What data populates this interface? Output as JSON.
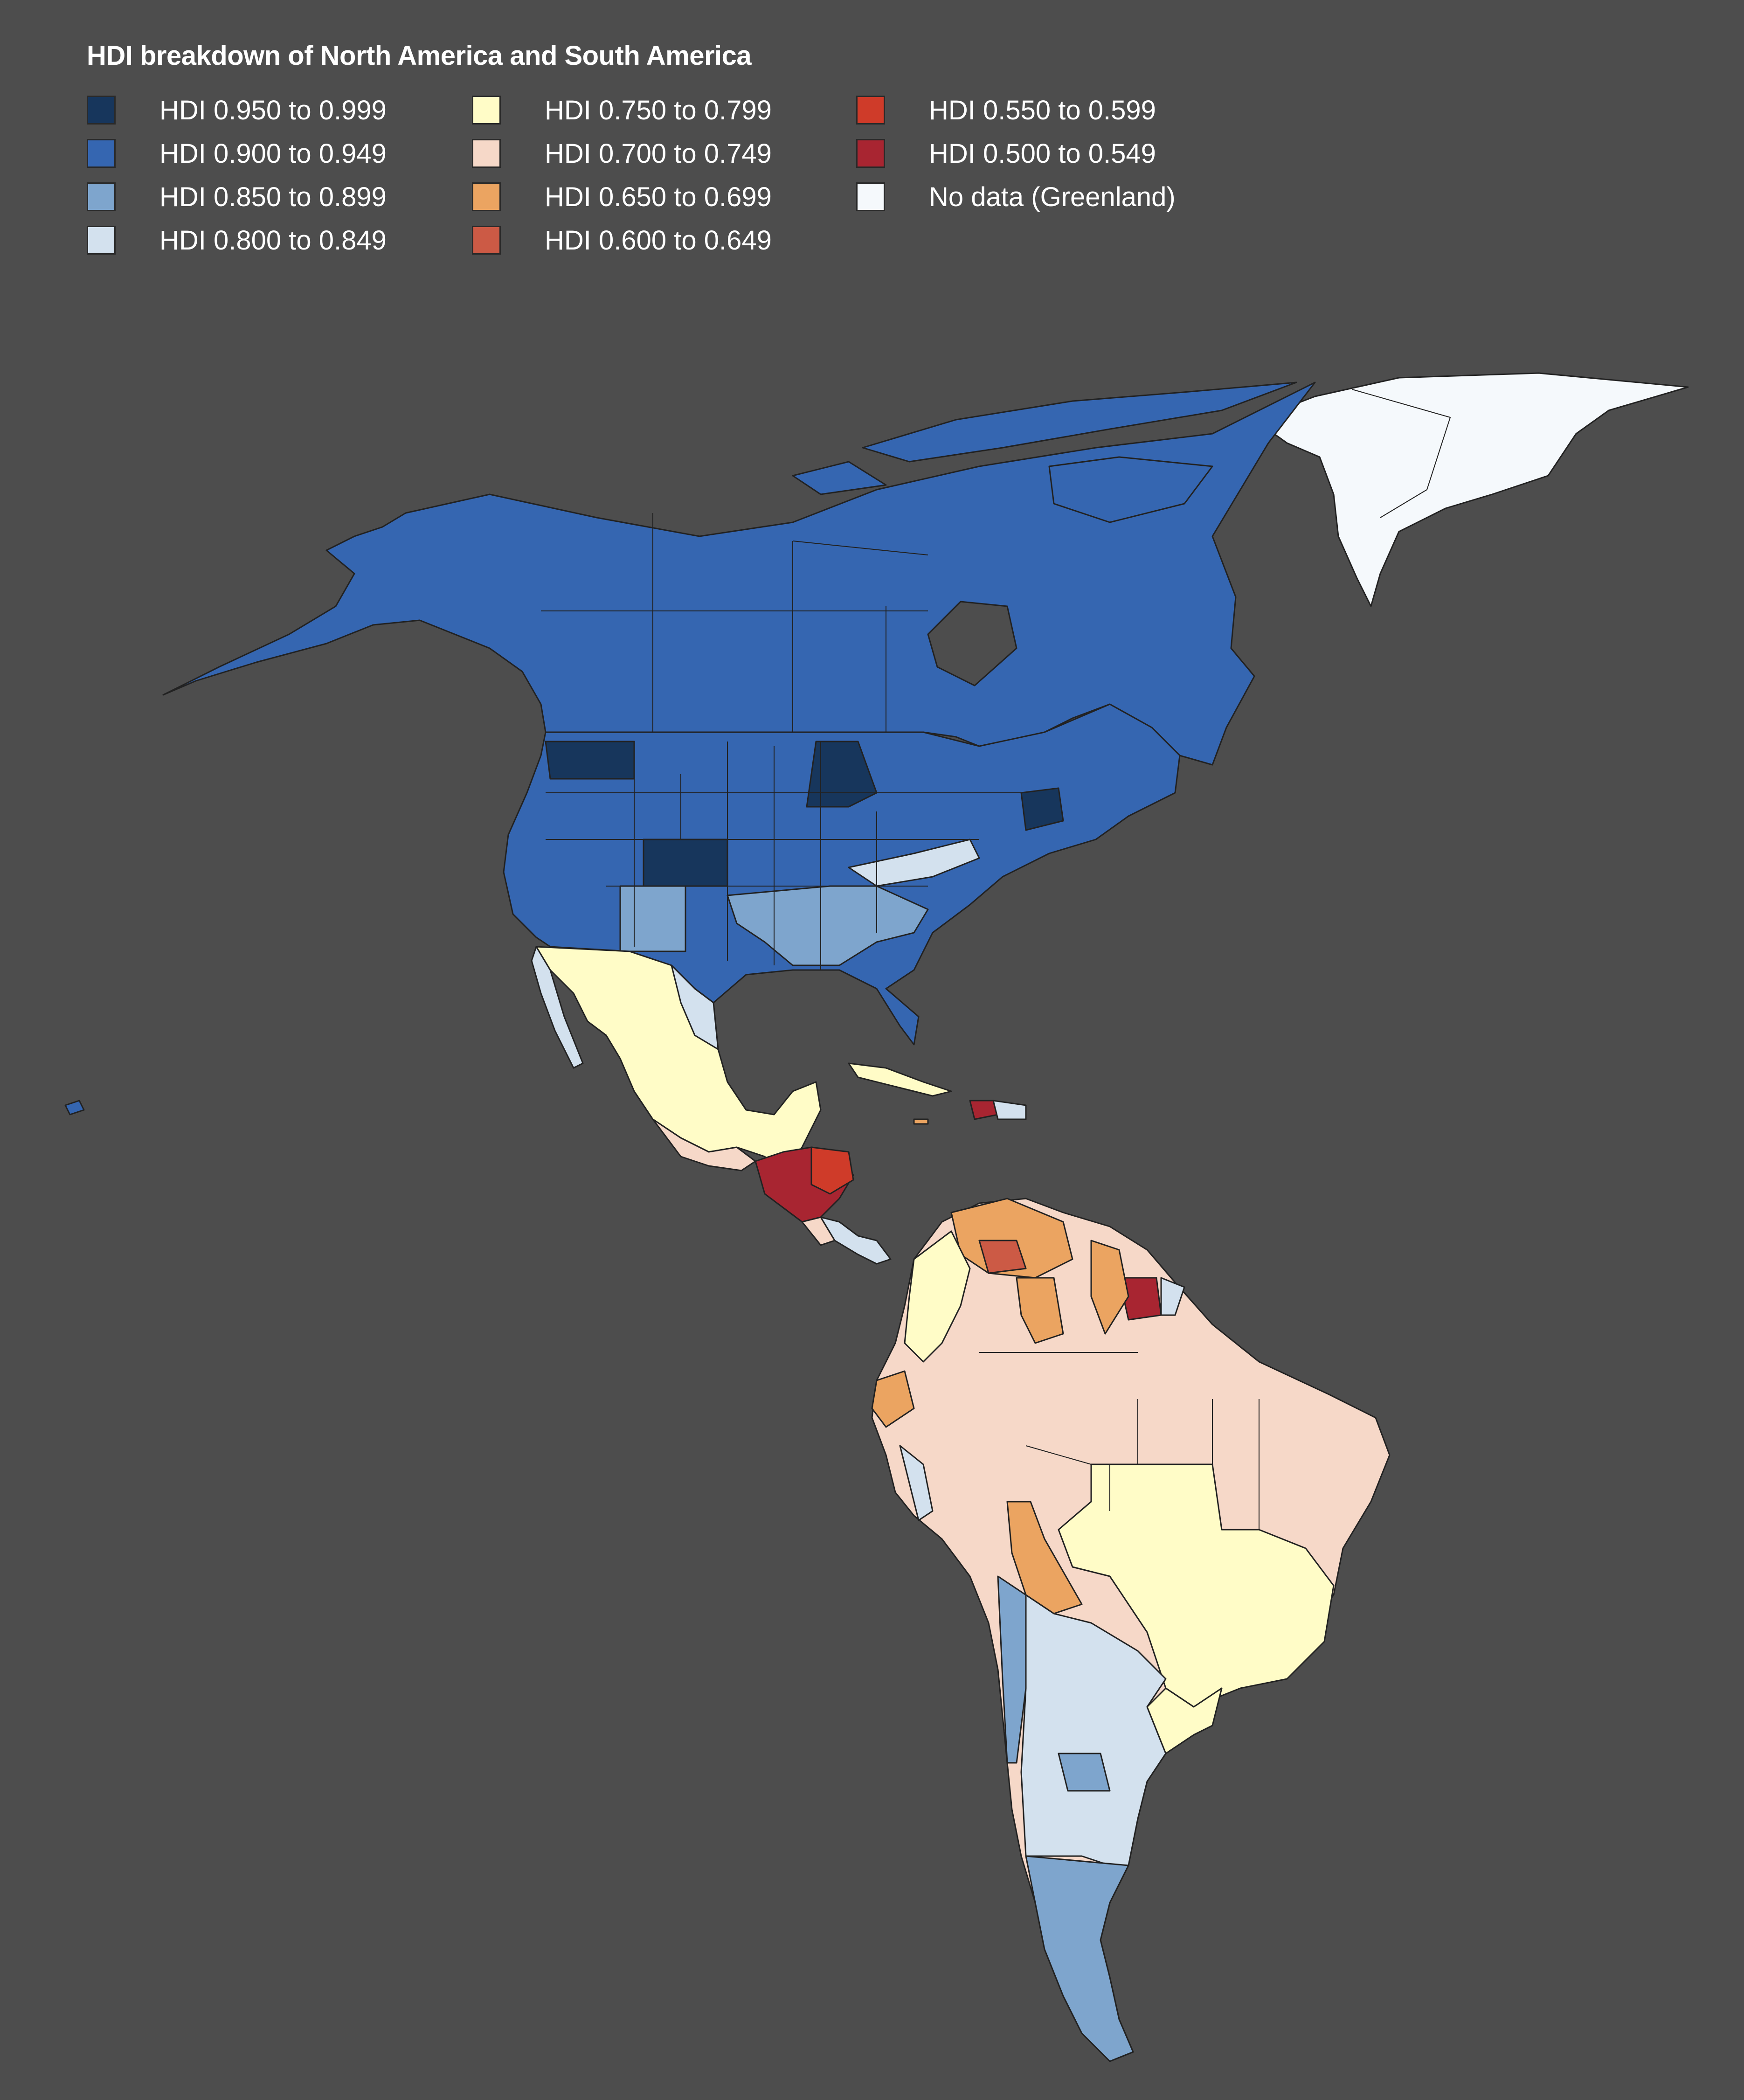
{
  "title": "HDI breakdown of North America and South America",
  "legend": [
    {
      "label": "HDI 0.950 to 0.999",
      "color": "#17365c"
    },
    {
      "label": "HDI 0.900 to 0.949",
      "color": "#3566b1"
    },
    {
      "label": "HDI 0.850 to 0.899",
      "color": "#7ea5cd"
    },
    {
      "label": "HDI 0.800 to 0.849",
      "color": "#d3e1ee"
    },
    {
      "label": "HDI 0.750 to 0.799",
      "color": "#fffcc7"
    },
    {
      "label": "HDI 0.700 to 0.749",
      "color": "#f6d8c8"
    },
    {
      "label": "HDI 0.650 to 0.699",
      "color": "#eba461"
    },
    {
      "label": "HDI 0.600 to 0.649",
      "color": "#cc5a45"
    },
    {
      "label": "HDI 0.550 to 0.599",
      "color": "#cf3b29"
    },
    {
      "label": "HDI 0.500 to 0.549",
      "color": "#a82531"
    },
    {
      "label": "No data (Greenland)",
      "color": "#f5f9fc"
    }
  ],
  "colors": {
    "background": "#4d4d4d",
    "border": "#222222"
  }
}
